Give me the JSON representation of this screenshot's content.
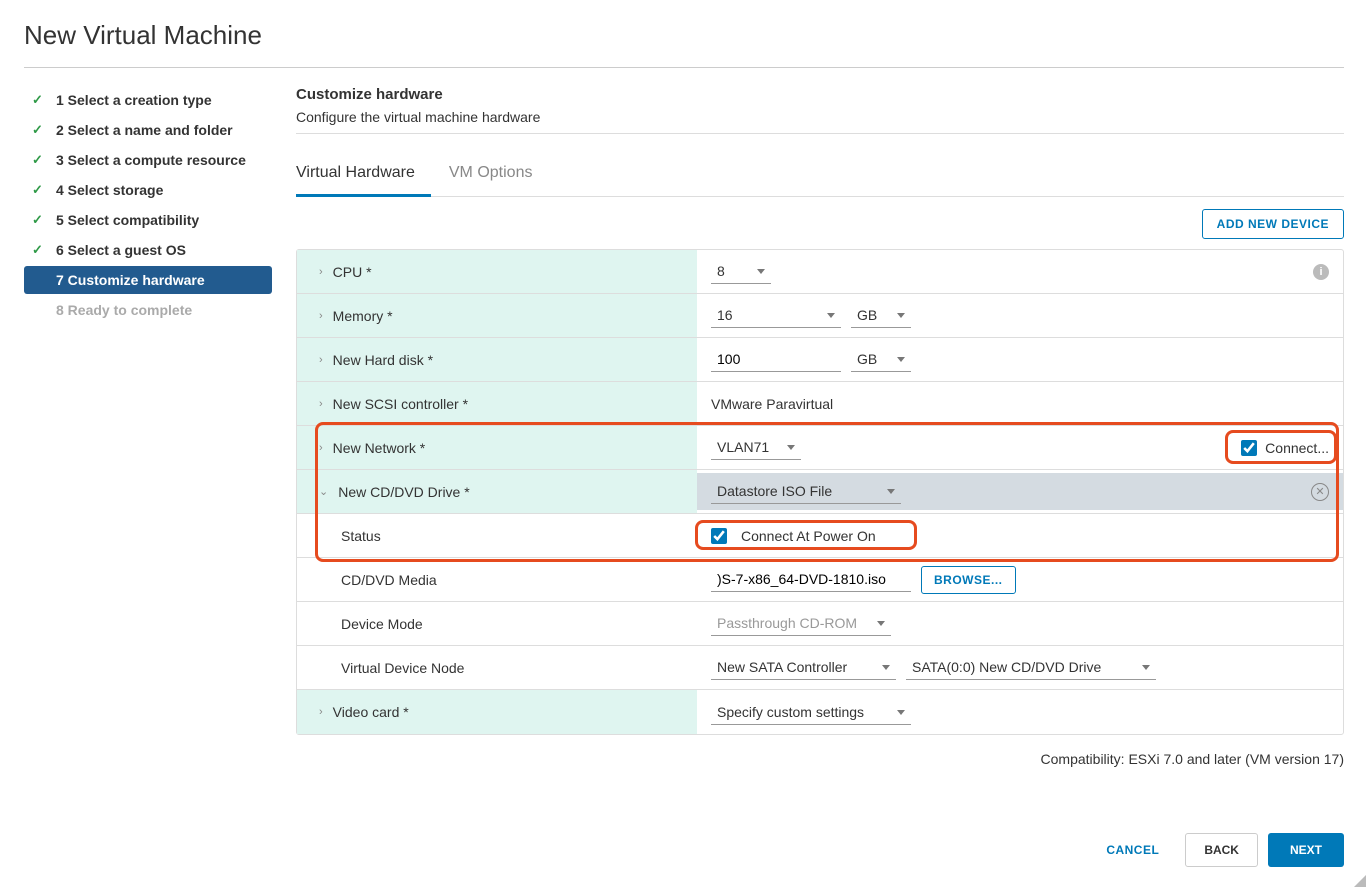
{
  "title": "New Virtual Machine",
  "steps": [
    {
      "label": "1 Select a creation type",
      "done": true
    },
    {
      "label": "2 Select a name and folder",
      "done": true
    },
    {
      "label": "3 Select a compute resource",
      "done": true
    },
    {
      "label": "4 Select storage",
      "done": true
    },
    {
      "label": "5 Select compatibility",
      "done": true
    },
    {
      "label": "6 Select a guest OS",
      "done": true
    },
    {
      "label": "7 Customize hardware",
      "active": true
    },
    {
      "label": "8 Ready to complete",
      "disabled": true
    }
  ],
  "section": {
    "title": "Customize hardware",
    "desc": "Configure the virtual machine hardware"
  },
  "tabs": [
    {
      "label": "Virtual Hardware",
      "active": true
    },
    {
      "label": "VM Options"
    }
  ],
  "addDevice": "ADD NEW DEVICE",
  "rows": {
    "cpu": {
      "label": "CPU *",
      "value": "8"
    },
    "memory": {
      "label": "Memory *",
      "value": "16",
      "unit": "GB"
    },
    "disk": {
      "label": "New Hard disk *",
      "value": "100",
      "unit": "GB"
    },
    "scsi": {
      "label": "New SCSI controller *",
      "value": "VMware Paravirtual"
    },
    "network": {
      "label": "New Network *",
      "value": "VLAN71",
      "connect": "Connect..."
    },
    "cddvd": {
      "label": "New CD/DVD Drive *",
      "value": "Datastore ISO File"
    },
    "status": {
      "label": "Status",
      "value": "Connect At Power On"
    },
    "media": {
      "label": "CD/DVD Media",
      "value": ")S-7-x86_64-DVD-1810.iso",
      "browse": "BROWSE..."
    },
    "devmode": {
      "label": "Device Mode",
      "value": "Passthrough CD-ROM"
    },
    "vdn": {
      "label": "Virtual Device Node",
      "controller": "New SATA Controller",
      "port": "SATA(0:0) New CD/DVD Drive"
    },
    "video": {
      "label": "Video card *",
      "value": "Specify custom settings"
    }
  },
  "compat": "Compatibility: ESXi 7.0 and later (VM version 17)",
  "footer": {
    "cancel": "CANCEL",
    "back": "BACK",
    "next": "NEXT"
  },
  "highlights": {
    "color": "#e64b1f",
    "bigBox": {
      "top_row_start": "network",
      "bottom_row_end": "status"
    },
    "connectBox": true,
    "statusValueBox": true
  }
}
